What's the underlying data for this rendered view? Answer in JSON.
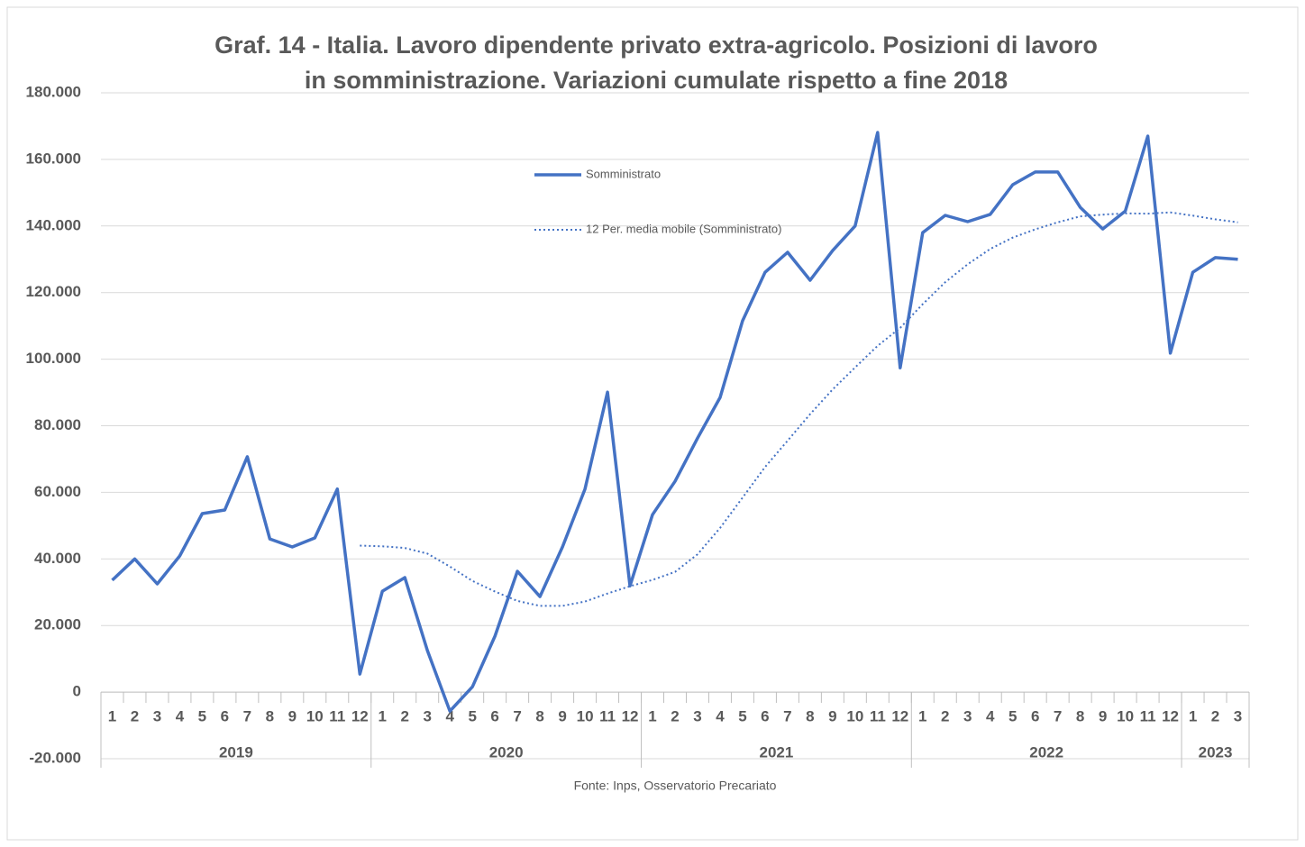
{
  "chart_data": {
    "type": "line",
    "title": [
      "Graf. 14 - Italia. Lavoro dipendente privato extra-agricolo. Posizioni di lavoro",
      "in somministrazione. Variazioni cumulate rispetto a fine 2018"
    ],
    "source": "Fonte: Inps, Osservatorio Precariato",
    "category_groups": [
      {
        "label": "2019",
        "categories": [
          "1",
          "2",
          "3",
          "4",
          "5",
          "6",
          "7",
          "8",
          "9",
          "10",
          "11",
          "12"
        ]
      },
      {
        "label": "2020",
        "categories": [
          "1",
          "2",
          "3",
          "4",
          "5",
          "6",
          "7",
          "8",
          "9",
          "10",
          "11",
          "12"
        ]
      },
      {
        "label": "2021",
        "categories": [
          "1",
          "2",
          "3",
          "4",
          "5",
          "6",
          "7",
          "8",
          "9",
          "10",
          "11",
          "12"
        ]
      },
      {
        "label": "2022",
        "categories": [
          "1",
          "2",
          "3",
          "4",
          "5",
          "6",
          "7",
          "8",
          "9",
          "10",
          "11",
          "12"
        ]
      },
      {
        "label": "2023",
        "categories": [
          "1",
          "2",
          "3"
        ]
      }
    ],
    "series": [
      {
        "name": "Somministrato",
        "color": "#4472c4",
        "style": "solid",
        "values": [
          33600,
          40000,
          32500,
          40900,
          53600,
          54700,
          70700,
          46000,
          43600,
          46300,
          61000,
          5400,
          30300,
          34400,
          12500,
          -5700,
          1600,
          16800,
          36300,
          28700,
          43600,
          61000,
          90100,
          31900,
          53300,
          63300,
          76300,
          88500,
          111500,
          126100,
          132100,
          123700,
          132600,
          140000,
          168100,
          97400,
          138000,
          143200,
          141300,
          143500,
          152400,
          156200,
          156200,
          145600,
          139100,
          144500,
          167000,
          101800,
          126100,
          130500,
          130000
        ]
      },
      {
        "name": "12 Per. media mobile (Somministrato)",
        "color": "#4472c4",
        "style": "dotted",
        "values": [
          null,
          null,
          null,
          null,
          null,
          null,
          null,
          null,
          null,
          null,
          null,
          44000,
          43800,
          43300,
          41600,
          37700,
          33400,
          30200,
          27400,
          25900,
          25900,
          27200,
          29600,
          31800,
          33700,
          36100,
          41400,
          49300,
          58400,
          67600,
          75500,
          83500,
          90900,
          97500,
          104000,
          109400,
          116500,
          123100,
          128500,
          133100,
          136500,
          139000,
          141100,
          142900,
          143400,
          143800,
          143700,
          144100,
          143100,
          142000,
          141100
        ]
      }
    ],
    "ylim": [
      -20000,
      180000
    ],
    "yticks": [
      {
        "value": -20000,
        "label": "-20.000"
      },
      0,
      {
        "value": 20000,
        "label": "20.000"
      },
      {
        "value": 40000,
        "label": "40.000"
      },
      {
        "value": 60000,
        "label": "60.000"
      },
      {
        "value": 80000,
        "label": "80.000"
      },
      {
        "value": 100000,
        "label": "100.000"
      },
      {
        "value": 120000,
        "label": "120.000"
      },
      {
        "value": 140000,
        "label": "140.000"
      },
      {
        "value": 160000,
        "label": "160.000"
      },
      {
        "value": 180000,
        "label": "180.000"
      }
    ],
    "grid": true
  }
}
